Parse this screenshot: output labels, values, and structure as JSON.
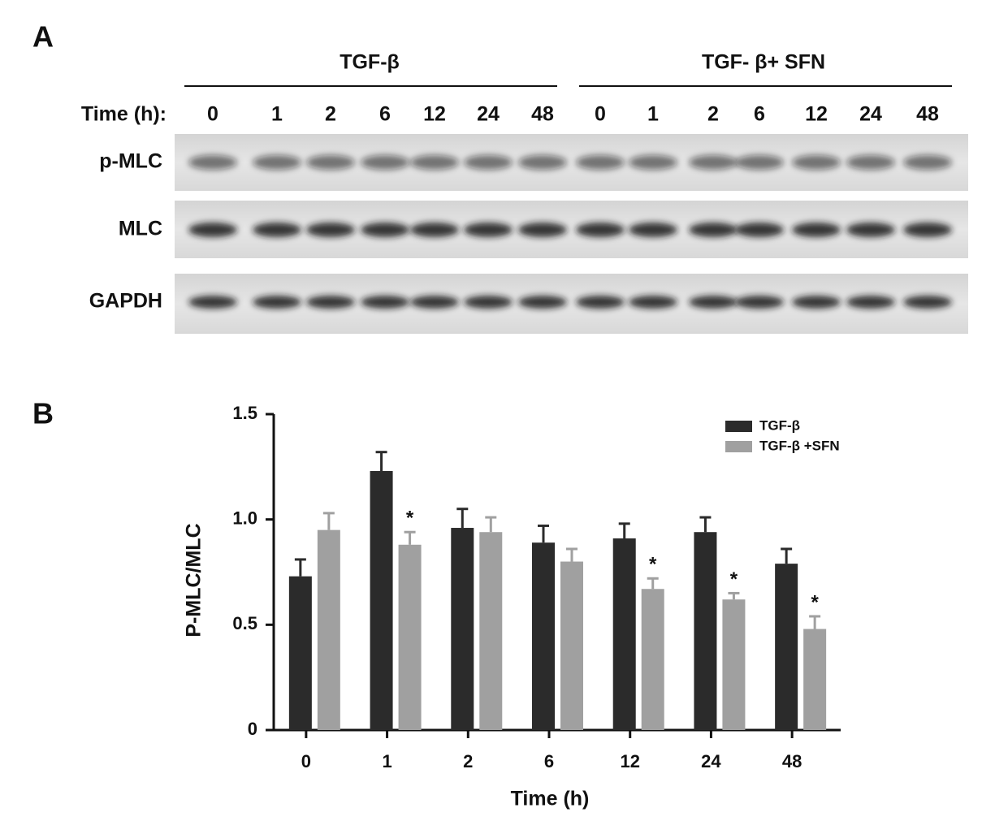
{
  "panel_a": {
    "panel_label": "A",
    "groups": [
      "TGF-β",
      "TGF- β+ SFN"
    ],
    "time_label": "Time (h):",
    "lanes": [
      [
        "0",
        "1",
        "2",
        "6",
        "12",
        "24",
        "48"
      ],
      [
        "0",
        "1",
        "2",
        "6",
        "12",
        "24",
        "48"
      ]
    ],
    "rows": [
      "p-MLC",
      "MLC",
      "GAPDH"
    ]
  },
  "chart_data": {
    "type": "bar",
    "panel_label": "B",
    "x_label": "Time (h)",
    "y_label": "P-MLC/MLC",
    "categories": [
      "0",
      "1",
      "2",
      "6",
      "12",
      "24",
      "48"
    ],
    "series": [
      {
        "name": "TGF-β",
        "color": "#2b2b2b",
        "values": [
          0.73,
          1.23,
          0.96,
          0.89,
          0.91,
          0.94,
          0.79
        ],
        "errors": [
          0.08,
          0.09,
          0.09,
          0.08,
          0.07,
          0.07,
          0.07
        ]
      },
      {
        "name": "TGF-β +SFN",
        "color": "#a0a0a0",
        "values": [
          0.95,
          0.88,
          0.94,
          0.8,
          0.67,
          0.62,
          0.48
        ],
        "errors": [
          0.08,
          0.06,
          0.07,
          0.06,
          0.05,
          0.03,
          0.06
        ]
      }
    ],
    "annotations": [
      {
        "text": "*",
        "category": "1"
      },
      {
        "text": "*",
        "category": "12"
      },
      {
        "text": "*",
        "category": "24"
      },
      {
        "text": "*",
        "category": "48"
      }
    ],
    "ylim": [
      0,
      1.5
    ],
    "yticks": [
      0,
      0.5,
      {
        "value": 1,
        "label": "1.0"
      },
      1.5
    ],
    "legend": "upper right"
  }
}
